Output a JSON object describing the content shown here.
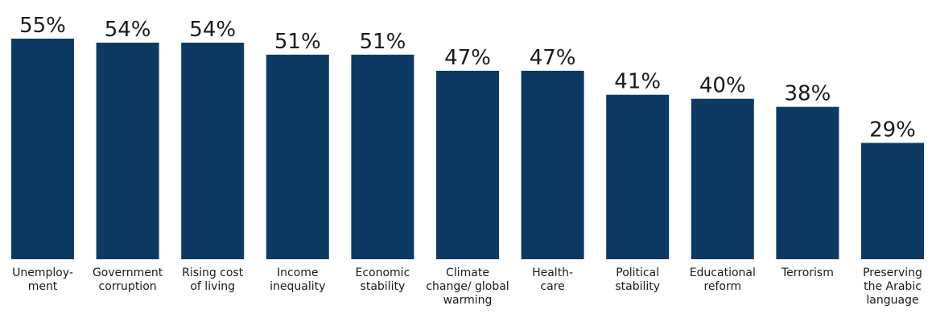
{
  "chart_data": {
    "type": "bar",
    "categories": [
      [
        "Unemploy-",
        "ment"
      ],
      [
        "Government",
        "corruption"
      ],
      [
        "Rising cost",
        "of living"
      ],
      [
        "Income",
        "inequality"
      ],
      [
        "Economic",
        "stability"
      ],
      [
        "Climate",
        "change/ global",
        "warming"
      ],
      [
        "Health-",
        "care"
      ],
      [
        "Political",
        "stability"
      ],
      [
        "Educational",
        "reform"
      ],
      [
        "Terrorism"
      ],
      [
        "Preserving",
        "the Arabic",
        "language"
      ]
    ],
    "values": [
      55,
      54,
      54,
      51,
      51,
      47,
      47,
      41,
      40,
      38,
      29
    ],
    "value_labels": [
      "55%",
      "54%",
      "54%",
      "51%",
      "51%",
      "47%",
      "47%",
      "41%",
      "40%",
      "38%",
      "29%"
    ],
    "title": "",
    "xlabel": "",
    "ylabel": "",
    "ylim": [
      0,
      55
    ],
    "grid": false,
    "legend": "none",
    "bar_color": "#0c3a62"
  }
}
